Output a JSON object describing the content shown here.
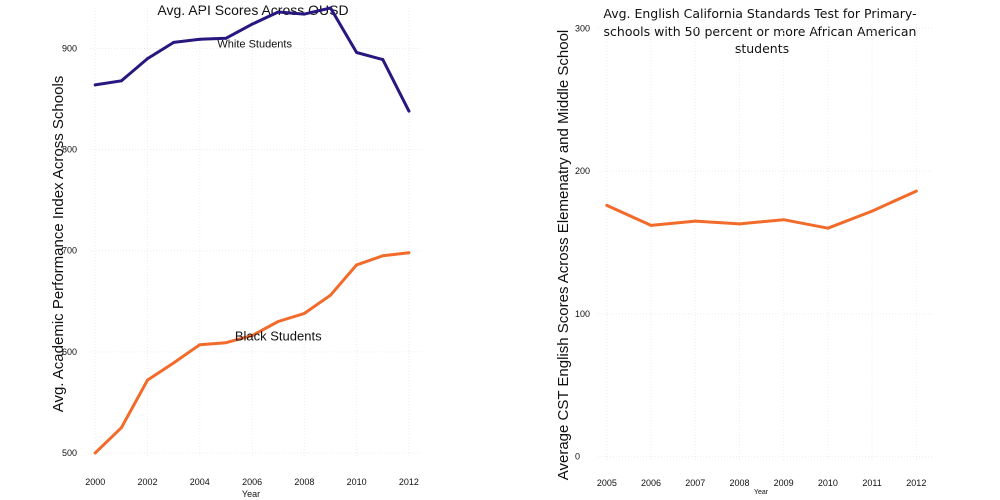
{
  "chart_data": [
    {
      "type": "line",
      "title": "Avg. API Scores Across OUSD",
      "xlabel": "Year",
      "ylabel": "Avg. Academic Performance Index Across Schools",
      "xlim": [
        1999.8,
        2012.5
      ],
      "ylim": [
        495,
        940
      ],
      "x_ticks": [
        2000,
        2002,
        2004,
        2006,
        2008,
        2010,
        2012
      ],
      "y_ticks": [
        500,
        600,
        700,
        800,
        900
      ],
      "grid": "on",
      "legend": "none",
      "series": [
        {
          "name": "White Students",
          "color": "#27177f",
          "x": [
            2000,
            2001,
            2002,
            2003,
            2004,
            2005,
            2006,
            2007,
            2008,
            2009,
            2010,
            2011,
            2012
          ],
          "y": [
            864,
            868,
            890,
            906,
            909,
            910,
            924,
            936,
            934,
            940,
            896,
            889,
            838
          ]
        },
        {
          "name": "Black Students",
          "color": "#f26b2a",
          "x": [
            2000,
            2001,
            2002,
            2003,
            2004,
            2005,
            2006,
            2007,
            2008,
            2009,
            2010,
            2011,
            2012
          ],
          "y": [
            500,
            525,
            572,
            589,
            607,
            609,
            616,
            630,
            638,
            656,
            686,
            695,
            698
          ]
        }
      ],
      "annotations": [
        {
          "text": "White Students",
          "x": 2006.1,
          "y": 901
        },
        {
          "text": "Black Students",
          "x": 2007.0,
          "y": 611
        }
      ]
    },
    {
      "type": "line",
      "title": "Avg. English California Standards Test for Primary-schools with 50 percent or more African American students",
      "title_lines": [
        "Avg. English California Standards Test for Primary-",
        "schools with 50 percent or more African American",
        "students"
      ],
      "xlabel": "Year",
      "ylabel": "Average CST English Scores Across Elemenatry and Middle School",
      "xlim": [
        2004.8,
        2012.4
      ],
      "ylim": [
        -3,
        303
      ],
      "x_ticks": [
        2005,
        2006,
        2007,
        2008,
        2009,
        2010,
        2011,
        2012
      ],
      "y_ticks": [
        0,
        100,
        200,
        300
      ],
      "grid": "on",
      "legend": "none",
      "series": [
        {
          "color": "#f26b2a",
          "x": [
            2005,
            2006,
            2007,
            2008,
            2009,
            2010,
            2011,
            2012
          ],
          "y": [
            176,
            162,
            165,
            163,
            166,
            160,
            172,
            186
          ]
        }
      ]
    }
  ]
}
